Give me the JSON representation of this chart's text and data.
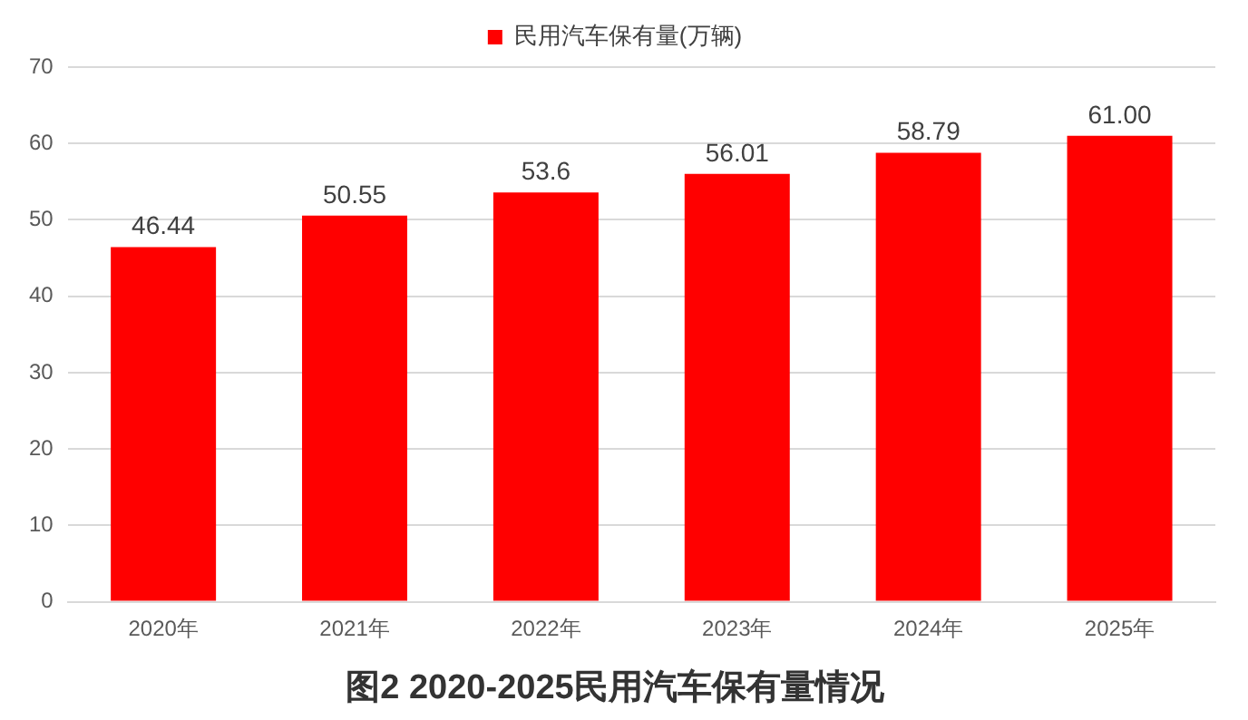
{
  "chart_data": {
    "type": "bar",
    "title": "图2 2020-2025民用汽车保有量情况",
    "categories": [
      "2020年",
      "2021年",
      "2022年",
      "2023年",
      "2024年",
      "2025年"
    ],
    "series": [
      {
        "name": "民用汽车保有量(万辆)",
        "color": "#ff0000",
        "values": [
          46.44,
          50.55,
          53.6,
          56.01,
          58.79,
          61
        ],
        "value_labels": [
          "46.44",
          "50.55",
          "53.6",
          "56.01",
          "58.79",
          "61.00"
        ]
      }
    ],
    "ylim": [
      0,
      70
    ],
    "yticks": [
      0,
      10,
      20,
      30,
      40,
      50,
      60,
      70
    ],
    "grid": "y",
    "legend": "top"
  }
}
